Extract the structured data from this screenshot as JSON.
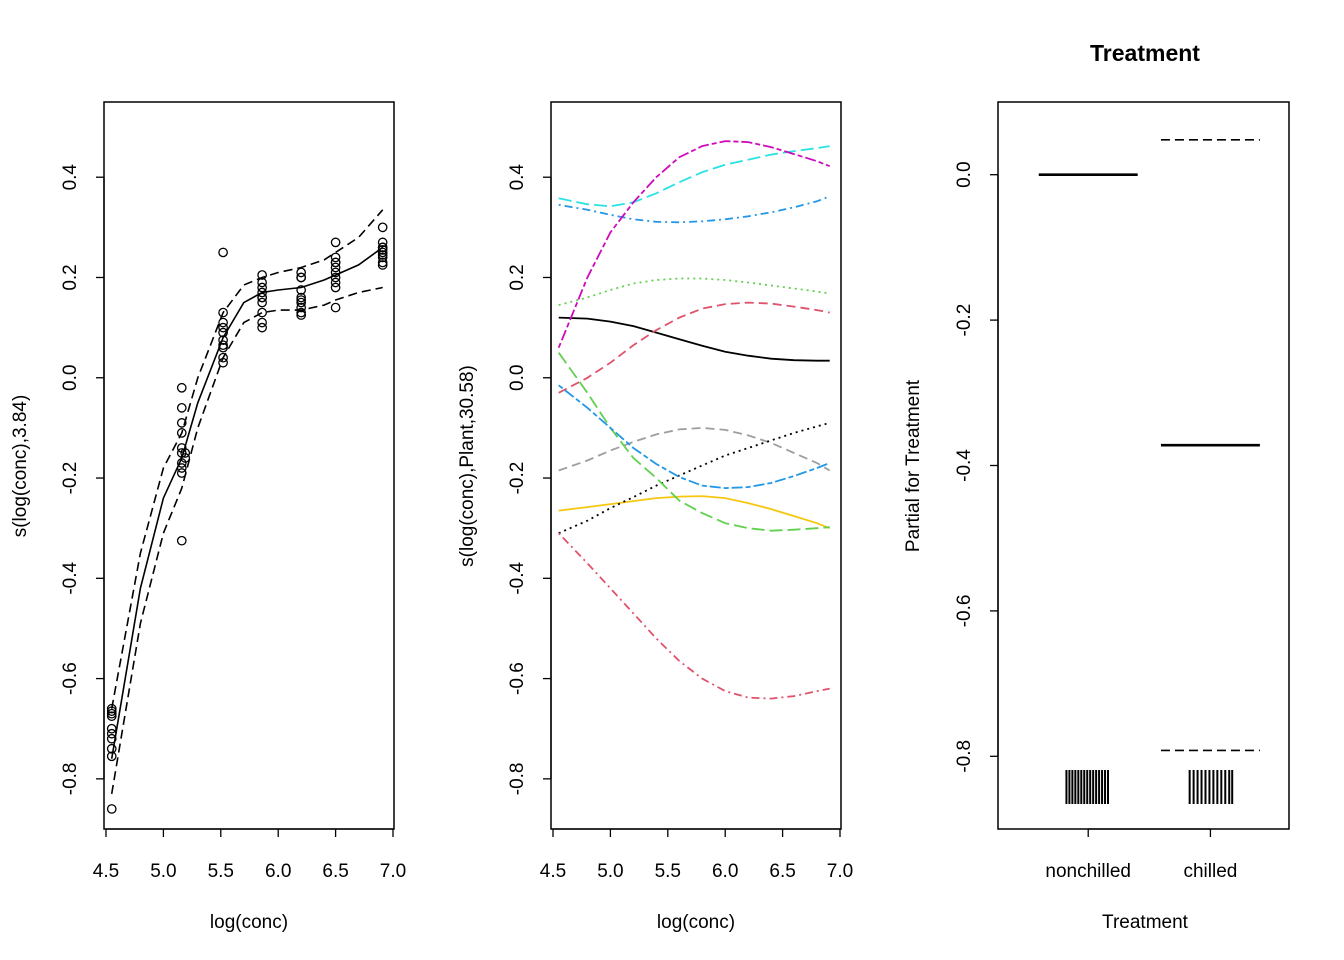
{
  "chart_data": [
    {
      "type": "line",
      "panel": "smooth-conc",
      "title": "",
      "xlabel": "log(conc)",
      "ylabel": "s(log(conc),3.84)",
      "xlim": [
        4.5,
        7.0
      ],
      "ylim": [
        -0.9,
        0.55
      ],
      "x_ticks": [
        "4.5",
        "5.0",
        "5.5",
        "6.0",
        "6.5",
        "7.0"
      ],
      "y_ticks": [
        "-0.8",
        "-0.6",
        "-0.4",
        "-0.2",
        "0.0",
        "0.2",
        "0.4"
      ],
      "colors": {
        "fit": "#000000",
        "band": "#000000",
        "points": "#000000"
      },
      "fit": {
        "x": [
          4.55,
          4.8,
          5.0,
          5.16,
          5.3,
          5.52,
          5.7,
          5.86,
          6.0,
          6.2,
          6.4,
          6.5,
          6.7,
          6.91
        ],
        "y": [
          -0.76,
          -0.42,
          -0.24,
          -0.16,
          -0.05,
          0.08,
          0.15,
          0.17,
          0.175,
          0.18,
          0.195,
          0.205,
          0.225,
          0.26
        ]
      },
      "upper": {
        "x": [
          4.55,
          4.8,
          5.0,
          5.16,
          5.3,
          5.52,
          5.7,
          5.86,
          6.0,
          6.2,
          6.4,
          6.5,
          6.7,
          6.91
        ],
        "y": [
          -0.66,
          -0.35,
          -0.18,
          -0.11,
          0.0,
          0.13,
          0.185,
          0.2,
          0.21,
          0.22,
          0.235,
          0.25,
          0.28,
          0.335
        ]
      },
      "lower": {
        "x": [
          4.55,
          4.8,
          5.0,
          5.16,
          5.3,
          5.52,
          5.7,
          5.86,
          6.0,
          6.2,
          6.4,
          6.5,
          6.7,
          6.91
        ],
        "y": [
          -0.83,
          -0.49,
          -0.31,
          -0.22,
          -0.1,
          0.04,
          0.11,
          0.13,
          0.135,
          0.135,
          0.145,
          0.155,
          0.17,
          0.18
        ]
      },
      "points": {
        "x": [
          4.55,
          4.55,
          4.55,
          4.55,
          4.55,
          4.55,
          4.55,
          4.55,
          4.55,
          4.55,
          5.16,
          5.16,
          5.16,
          5.16,
          5.16,
          5.16,
          5.16,
          5.16,
          5.16,
          5.16,
          5.19,
          5.19,
          5.52,
          5.52,
          5.52,
          5.52,
          5.52,
          5.52,
          5.52,
          5.52,
          5.52,
          5.52,
          5.86,
          5.86,
          5.86,
          5.86,
          5.86,
          5.86,
          5.86,
          5.86,
          5.86,
          5.86,
          6.2,
          6.2,
          6.2,
          6.2,
          6.2,
          6.2,
          6.2,
          6.2,
          6.2,
          6.2,
          6.5,
          6.5,
          6.5,
          6.5,
          6.5,
          6.5,
          6.5,
          6.5,
          6.5,
          6.5,
          6.91,
          6.91,
          6.91,
          6.91,
          6.91,
          6.91,
          6.91,
          6.91,
          6.91,
          6.91
        ],
        "y": [
          -0.86,
          -0.755,
          -0.74,
          -0.72,
          -0.71,
          -0.7,
          -0.675,
          -0.67,
          -0.665,
          -0.66,
          -0.325,
          -0.19,
          -0.18,
          -0.17,
          -0.15,
          -0.14,
          -0.11,
          -0.09,
          -0.06,
          -0.02,
          -0.15,
          -0.16,
          0.25,
          0.13,
          0.11,
          0.1,
          0.09,
          0.075,
          0.065,
          0.06,
          0.04,
          0.03,
          0.205,
          0.19,
          0.18,
          0.17,
          0.16,
          0.15,
          0.13,
          0.11,
          0.1,
          0.16,
          0.21,
          0.2,
          0.175,
          0.16,
          0.155,
          0.14,
          0.13,
          0.125,
          0.2,
          0.15,
          0.27,
          0.24,
          0.23,
          0.22,
          0.21,
          0.2,
          0.19,
          0.18,
          0.14,
          0.23,
          0.3,
          0.27,
          0.26,
          0.255,
          0.25,
          0.245,
          0.24,
          0.23,
          0.225,
          0.26
        ]
      }
    },
    {
      "type": "line",
      "panel": "smooth-conc-plant",
      "title": "",
      "xlabel": "log(conc)",
      "ylabel": "s(log(conc),Plant,30.58)",
      "xlim": [
        4.5,
        7.0
      ],
      "ylim": [
        -0.9,
        0.55
      ],
      "x_ticks": [
        "4.5",
        "5.0",
        "5.5",
        "6.0",
        "6.5",
        "7.0"
      ],
      "y_ticks": [
        "-0.8",
        "-0.6",
        "-0.4",
        "-0.2",
        "0.0",
        "0.2",
        "0.4"
      ],
      "x": [
        4.55,
        4.8,
        5.0,
        5.2,
        5.4,
        5.6,
        5.8,
        6.0,
        6.2,
        6.4,
        6.6,
        6.8,
        6.91
      ],
      "series": [
        {
          "color": "#000000",
          "dash": "solid",
          "values": [
            0.12,
            0.118,
            0.112,
            0.103,
            0.09,
            0.077,
            0.064,
            0.052,
            0.044,
            0.038,
            0.035,
            0.034,
            0.034
          ]
        },
        {
          "color": "#DF536B",
          "dash": "dashed",
          "values": [
            -0.03,
            0.0,
            0.03,
            0.065,
            0.095,
            0.12,
            0.138,
            0.147,
            0.15,
            0.148,
            0.142,
            0.135,
            0.13
          ]
        },
        {
          "color": "#61D04F",
          "dash": "dotted",
          "values": [
            0.145,
            0.16,
            0.175,
            0.188,
            0.195,
            0.198,
            0.198,
            0.195,
            0.19,
            0.184,
            0.178,
            0.172,
            0.168
          ]
        },
        {
          "color": "#2297E6",
          "dash": "dotdash",
          "values": [
            0.345,
            0.335,
            0.325,
            0.316,
            0.311,
            0.31,
            0.312,
            0.316,
            0.322,
            0.33,
            0.34,
            0.352,
            0.362
          ]
        },
        {
          "color": "#28E2E5",
          "dash": "longdash",
          "values": [
            0.358,
            0.346,
            0.342,
            0.35,
            0.368,
            0.39,
            0.41,
            0.425,
            0.435,
            0.445,
            0.452,
            0.458,
            0.462
          ]
        },
        {
          "color": "#CD0BBC",
          "dash": "twodash",
          "values": [
            0.06,
            0.2,
            0.29,
            0.35,
            0.4,
            0.44,
            0.462,
            0.472,
            0.47,
            0.46,
            0.446,
            0.432,
            0.422
          ]
        },
        {
          "color": "#F5C710",
          "dash": "solid",
          "values": [
            -0.265,
            -0.258,
            -0.252,
            -0.246,
            -0.24,
            -0.237,
            -0.236,
            -0.24,
            -0.25,
            -0.262,
            -0.276,
            -0.29,
            -0.3
          ]
        },
        {
          "color": "#9E9E9E",
          "dash": "dashed",
          "values": [
            -0.185,
            -0.165,
            -0.145,
            -0.128,
            -0.113,
            -0.103,
            -0.1,
            -0.104,
            -0.115,
            -0.13,
            -0.15,
            -0.17,
            -0.185
          ]
        },
        {
          "color": "#000000",
          "dash": "dotted",
          "values": [
            -0.31,
            -0.285,
            -0.26,
            -0.238,
            -0.215,
            -0.195,
            -0.175,
            -0.155,
            -0.14,
            -0.125,
            -0.11,
            -0.097,
            -0.09
          ]
        },
        {
          "color": "#DF536B",
          "dash": "dotdash",
          "values": [
            -0.31,
            -0.37,
            -0.42,
            -0.47,
            -0.52,
            -0.565,
            -0.6,
            -0.625,
            -0.638,
            -0.64,
            -0.635,
            -0.625,
            -0.62
          ]
        },
        {
          "color": "#61D04F",
          "dash": "longdash",
          "values": [
            0.05,
            -0.03,
            -0.1,
            -0.16,
            -0.2,
            -0.245,
            -0.27,
            -0.29,
            -0.3,
            -0.305,
            -0.303,
            -0.3,
            -0.298
          ]
        },
        {
          "color": "#2297E6",
          "dash": "twodash",
          "values": [
            -0.015,
            -0.06,
            -0.1,
            -0.14,
            -0.172,
            -0.198,
            -0.215,
            -0.22,
            -0.218,
            -0.21,
            -0.196,
            -0.18,
            -0.17
          ]
        }
      ]
    },
    {
      "type": "bar",
      "panel": "treatment",
      "title": "Treatment",
      "xlabel": "Treatment",
      "ylabel": "Partial for Treatment",
      "ylim": [
        -0.9,
        0.1
      ],
      "categories": [
        "nonchilled",
        "chilled"
      ],
      "y_ticks": [
        "-0.8",
        "-0.6",
        "-0.4",
        "-0.2",
        "0.0"
      ],
      "estimate": [
        0.0,
        -0.372
      ],
      "upper": [
        0.0,
        0.048
      ],
      "lower": [
        0.0,
        -0.792
      ],
      "rug": {
        "nonchilled": [
          0.06,
          0.12,
          0.18,
          0.24,
          0.3,
          0.36,
          0.42,
          0.48,
          0.54,
          0.6,
          0.66,
          0.72,
          0.78,
          0.84,
          0.9
        ],
        "chilled": [
          0.08,
          0.16,
          0.24,
          0.32,
          0.4,
          0.48,
          0.56,
          0.64,
          0.72,
          0.8,
          0.88,
          0.94
        ]
      },
      "colors": {
        "line": "#000000"
      }
    }
  ]
}
